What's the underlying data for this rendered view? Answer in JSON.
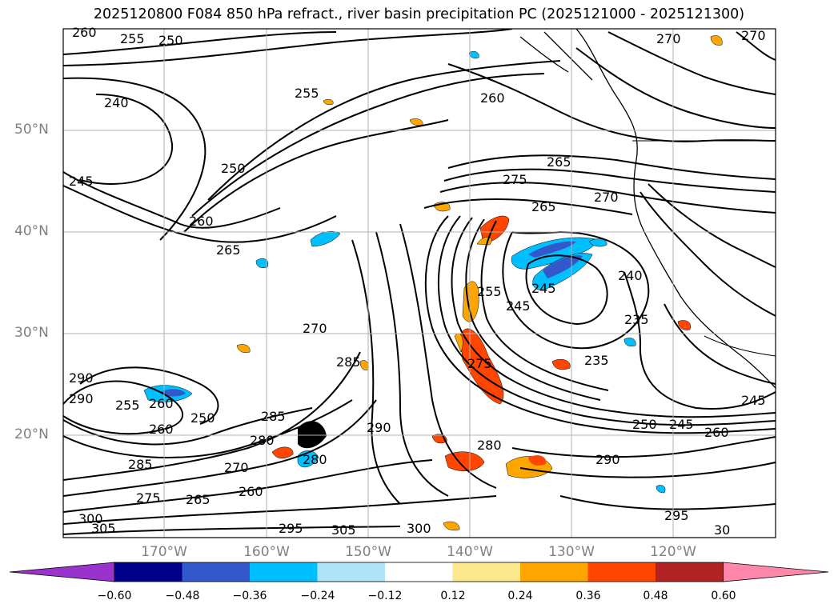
{
  "title": "2025120800 F084 850 hPa refract., river basin precipitation PC (2025121000 - 2025121300)",
  "map": {
    "lat_labels": [
      "50°N",
      "40°N",
      "30°N",
      "20°N"
    ],
    "lon_labels": [
      "170°W",
      "160°W",
      "150°W",
      "140°W",
      "130°W",
      "120°W"
    ],
    "gridlines": true,
    "background": "#ffffff",
    "contour_color": "#000000",
    "contour_labels": [
      "260",
      "255",
      "250",
      "270",
      "270",
      "255",
      "240",
      "260",
      "250",
      "245",
      "260",
      "265",
      "275",
      "265",
      "270",
      "265",
      "240",
      "245",
      "245",
      "235",
      "235",
      "270",
      "255",
      "275",
      "285",
      "290",
      "285",
      "280",
      "280",
      "280",
      "270",
      "260",
      "265",
      "275",
      "300",
      "305",
      "285",
      "295",
      "305",
      "300",
      "290",
      "295",
      "260",
      "250",
      "245",
      "260",
      "245",
      "250",
      "255",
      "260",
      "290",
      "290",
      "30"
    ]
  },
  "colorbar": {
    "colors": [
      "#9933cc",
      "#00008b",
      "#3358cc",
      "#00bfff",
      "#aee3f8",
      "#ffffff",
      "#fde98d",
      "#ffa500",
      "#ff4500",
      "#b22222",
      "#ff88aa"
    ],
    "ticks": [
      "−0.60",
      "−0.48",
      "−0.36",
      "−0.24",
      "−0.12",
      "0.12",
      "0.24",
      "0.36",
      "0.48",
      "0.60"
    ],
    "extend": "both"
  }
}
